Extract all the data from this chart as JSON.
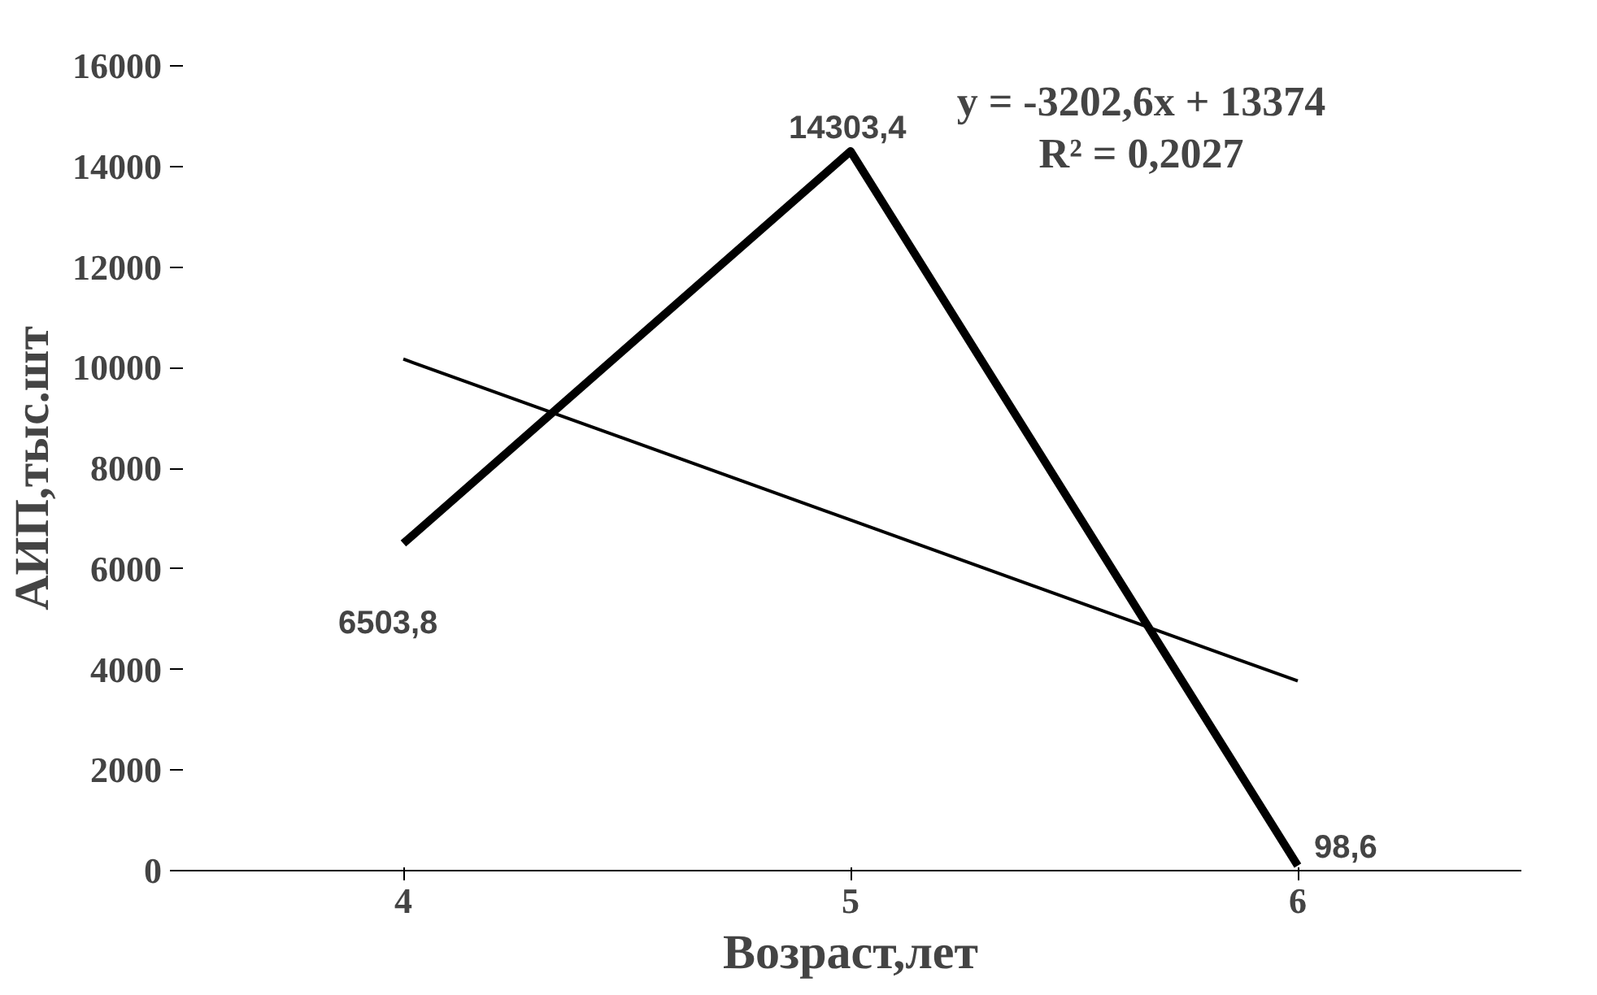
{
  "chart_data": {
    "type": "line",
    "xlabel": "Возраст,лет",
    "ylabel": "АИП,тыс.шт",
    "x": [
      4,
      5,
      6
    ],
    "xlim": [
      3.5,
      6.5
    ],
    "xticks": [
      4,
      5,
      6
    ],
    "ylim": [
      0,
      16000
    ],
    "yticks": [
      0,
      2000,
      4000,
      6000,
      8000,
      10000,
      12000,
      14000,
      16000
    ],
    "series": [
      {
        "color": "#000000",
        "values": [
          6503.8,
          14303.4,
          98.6
        ],
        "value_labels": [
          "6503,8",
          "14303,4",
          "98,6"
        ]
      },
      {
        "color": "#000000",
        "x": [
          4,
          5,
          6
        ],
        "values": [
          10170,
          6970,
          3770
        ]
      }
    ],
    "annotations": [
      "y = -3202,6x + 13374",
      "R² = 0,2027"
    ],
    "grid": false,
    "marker": "none"
  }
}
